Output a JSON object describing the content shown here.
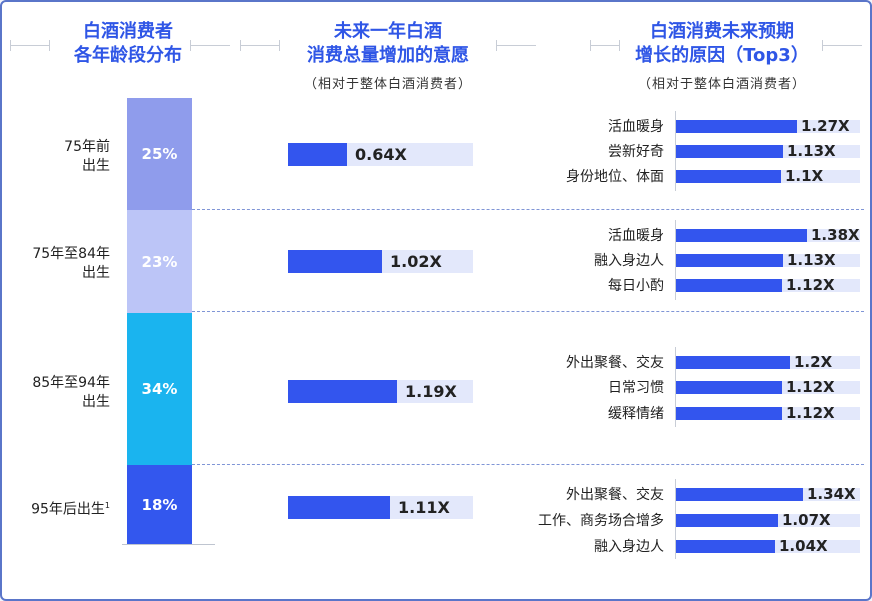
{
  "headers": {
    "col1": [
      "白酒消费者",
      "各年龄段分布"
    ],
    "col2": [
      "未来一年白酒",
      "消费总量增加的意愿"
    ],
    "col2_sub": "（相对于整体白酒消费者）",
    "col3": [
      "白酒消费未来预期",
      "增长的原因（Top3）"
    ],
    "col3_sub": "（相对于整体白酒消费者）"
  },
  "chart_data": [
    {
      "type": "bar",
      "title": "白酒消费者各年龄段分布",
      "categories": [
        "75年前出生",
        "75年至84年出生",
        "85年至94年出生",
        "95年后出生"
      ],
      "values": [
        25,
        23,
        34,
        18
      ],
      "value_labels": [
        "25%",
        "23%",
        "34%",
        "18%"
      ],
      "category_labels": [
        [
          "75年前",
          "出生"
        ],
        [
          "75年至84年",
          "出生"
        ],
        [
          "85年至94年",
          "出生"
        ],
        [
          "95年后出生",
          "1"
        ]
      ],
      "colors": [
        "#8f9cec",
        "#bcc5f7",
        "#1ab4ef",
        "#3357ee"
      ]
    },
    {
      "type": "bar",
      "title": "未来一年白酒消费总量增加的意愿",
      "subtitle": "（相对于整体白酒消费者）",
      "categories": [
        "75年前出生",
        "75年至84年出生",
        "85年至94年出生",
        "95年后出生"
      ],
      "values": [
        0.64,
        1.02,
        1.19,
        1.11
      ],
      "value_labels": [
        "0.64X",
        "1.02X",
        "1.19X",
        "1.11X"
      ]
    },
    {
      "type": "bar",
      "title": "白酒消费未来预期增长的原因（Top3）",
      "subtitle": "（相对于整体白酒消费者）",
      "groups": [
        {
          "group": "75年前出生",
          "items": [
            {
              "label": "活血暖身",
              "value": 1.27,
              "value_label": "1.27X"
            },
            {
              "label": "尝新好奇",
              "value": 1.13,
              "value_label": "1.13X"
            },
            {
              "label": "身份地位、体面",
              "value": 1.1,
              "value_label": "1.1X"
            }
          ]
        },
        {
          "group": "75年至84年出生",
          "items": [
            {
              "label": "活血暖身",
              "value": 1.38,
              "value_label": "1.38X"
            },
            {
              "label": "融入身边人",
              "value": 1.13,
              "value_label": "1.13X"
            },
            {
              "label": "每日小酌",
              "value": 1.12,
              "value_label": "1.12X"
            }
          ]
        },
        {
          "group": "85年至94年出生",
          "items": [
            {
              "label": "外出聚餐、交友",
              "value": 1.2,
              "value_label": "1.2X"
            },
            {
              "label": "日常习惯",
              "value": 1.12,
              "value_label": "1.12X"
            },
            {
              "label": "缓释情绪",
              "value": 1.12,
              "value_label": "1.12X"
            }
          ]
        },
        {
          "group": "95年后出生",
          "items": [
            {
              "label": "外出聚餐、交友",
              "value": 1.34,
              "value_label": "1.34X"
            },
            {
              "label": "工作、商务场合增多",
              "value": 1.07,
              "value_label": "1.07X"
            },
            {
              "label": "融入身边人",
              "value": 1.04,
              "value_label": "1.04X"
            }
          ]
        }
      ]
    }
  ]
}
